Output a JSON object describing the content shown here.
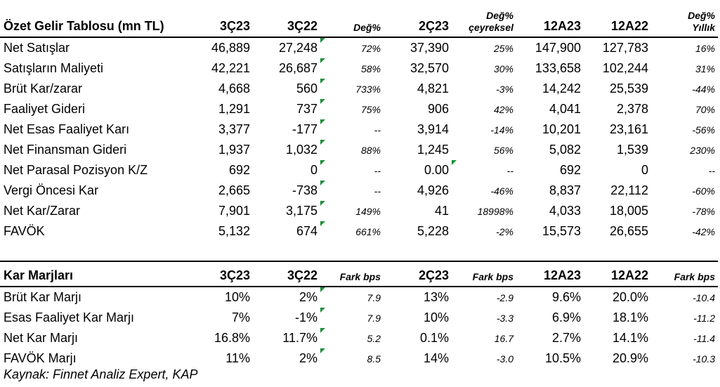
{
  "income": {
    "headers": [
      "Özet Gelir Tablosu (mn TL)",
      "3Ç23",
      "3Ç22",
      "Değ%",
      "2Ç23",
      "Değ%\nçeyreksel",
      "12A23",
      "12A22",
      "Değ%\nYıllık"
    ],
    "rows": [
      [
        "Net Satışlar",
        "46,889",
        "27,248",
        "72%",
        "37,390",
        "25%",
        "147,900",
        "127,783",
        "16%"
      ],
      [
        "Satışların Maliyeti",
        "42,221",
        "26,687",
        "58%",
        "32,570",
        "30%",
        "133,658",
        "102,244",
        "31%"
      ],
      [
        "Brüt Kar/zarar",
        "4,668",
        "560",
        "733%",
        "4,821",
        "-3%",
        "14,242",
        "25,539",
        "-44%"
      ],
      [
        "Faaliyet Gideri",
        "1,291",
        "737",
        "75%",
        "906",
        "42%",
        "4,041",
        "2,378",
        "70%"
      ],
      [
        "Net Esas Faaliyet Karı",
        "3,377",
        "-177",
        "--",
        "3,914",
        "-14%",
        "10,201",
        "23,161",
        "-56%"
      ],
      [
        "Net Finansman Gideri",
        "1,937",
        "1,032",
        "88%",
        "1,245",
        "56%",
        "5,082",
        "1,539",
        "230%"
      ],
      [
        "Net Parasal Pozisyon K/Z",
        "692",
        "0",
        "--",
        "0.00",
        "--",
        "692",
        "0",
        "--"
      ],
      [
        "Vergi Öncesi Kar",
        "2,665",
        "-738",
        "--",
        "4,926",
        "-46%",
        "8,837",
        "22,112",
        "-60%"
      ],
      [
        "Net Kar/Zarar",
        "7,901",
        "3,175",
        "149%",
        "41",
        "18998%",
        "4,033",
        "18,005",
        "-78%"
      ],
      [
        "FAVÖK",
        "5,132",
        "674",
        "661%",
        "5,228",
        "-2%",
        "15,573",
        "26,655",
        "-42%"
      ]
    ]
  },
  "margins": {
    "headers": [
      "Kar Marjları",
      "3Ç23",
      "3Ç22",
      "Fark bps",
      "2Ç23",
      "Fark bps",
      "12A23",
      "12A22",
      "Fark bps"
    ],
    "rows": [
      [
        "Brüt Kar Marjı",
        "10%",
        "2%",
        "7.9",
        "13%",
        "-2.9",
        "9.6%",
        "20.0%",
        "-10.4"
      ],
      [
        "Esas Faaliyet Kar Marjı",
        "7%",
        "-1%",
        "7.9",
        "10%",
        "-3.3",
        "6.9%",
        "18.1%",
        "-11.2"
      ],
      [
        "Net Kar Marjı",
        "16.8%",
        "11.7%",
        "5.2",
        "0.1%",
        "16.7",
        "2.7%",
        "14.1%",
        "-11.4"
      ],
      [
        "FAVÖK Marjı",
        "11%",
        "2%",
        "8.5",
        "14%",
        "-3.0",
        "10.5%",
        "20.9%",
        "-10.3"
      ]
    ]
  },
  "source": "Kaynak: Finnet Analiz Expert, KAP"
}
